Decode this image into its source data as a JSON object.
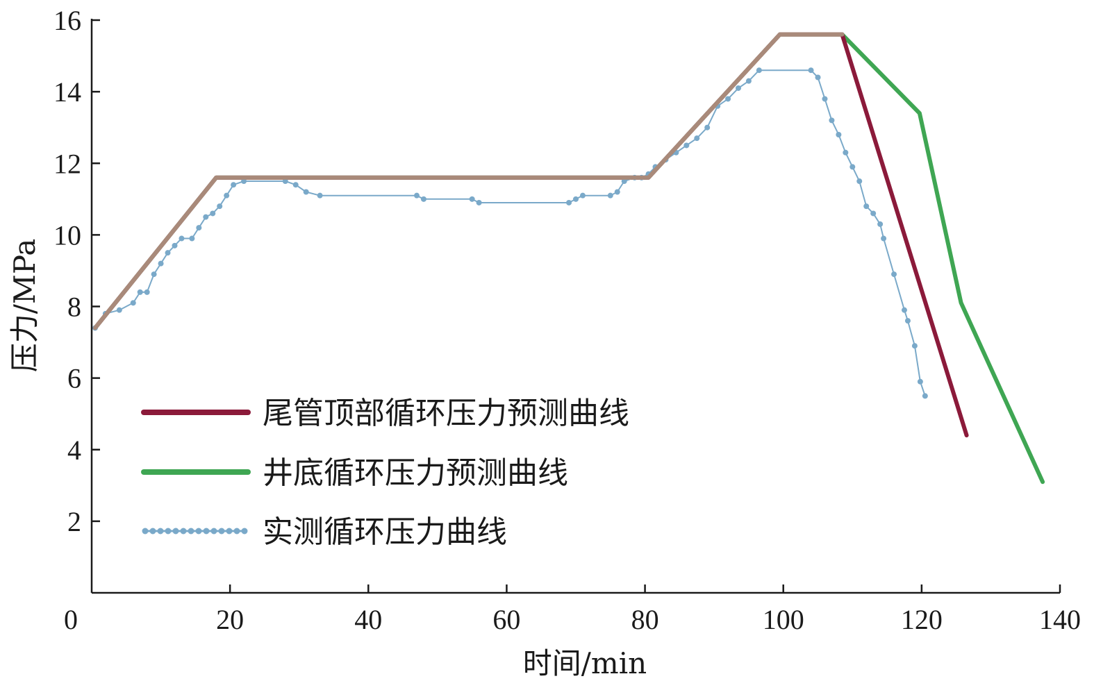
{
  "chart_data": {
    "type": "line",
    "xlabel": "时间/min",
    "ylabel": "压力/MPa",
    "xlim": [
      0,
      140
    ],
    "ylim": [
      0,
      16
    ],
    "xticks": [
      0,
      20,
      40,
      60,
      80,
      100,
      120,
      140
    ],
    "yticks": [
      2,
      4,
      6,
      8,
      10,
      12,
      14,
      16
    ],
    "grid": false,
    "legend_position": "lower-left",
    "series": [
      {
        "name": "尾管顶部循环压力预测曲线",
        "color": "#8b1a3a",
        "style": "solid",
        "points": [
          [
            0.5,
            7.4
          ],
          [
            18,
            11.6
          ],
          [
            80.5,
            11.6
          ],
          [
            99.5,
            15.6
          ],
          [
            108.5,
            15.6
          ],
          [
            126.5,
            4.4
          ]
        ]
      },
      {
        "name": "井底循环压力预测曲线",
        "color": "#3fa653",
        "style": "solid",
        "points": [
          [
            0.5,
            7.4
          ],
          [
            18,
            11.6
          ],
          [
            80.5,
            11.6
          ],
          [
            99.5,
            15.6
          ],
          [
            108.5,
            15.6
          ],
          [
            119.7,
            13.4
          ],
          [
            125.7,
            8.1
          ],
          [
            137.5,
            3.1
          ]
        ]
      },
      {
        "name": "实测循环压力曲线",
        "color": "#7aa9c9",
        "style": "dotted",
        "points": [
          [
            0.5,
            7.4
          ],
          [
            2,
            7.8
          ],
          [
            4,
            7.9
          ],
          [
            6,
            8.1
          ],
          [
            7,
            8.4
          ],
          [
            8,
            8.4
          ],
          [
            9,
            8.9
          ],
          [
            10,
            9.2
          ],
          [
            11,
            9.5
          ],
          [
            12,
            9.7
          ],
          [
            13,
            9.9
          ],
          [
            14.5,
            9.9
          ],
          [
            15.5,
            10.2
          ],
          [
            16.5,
            10.5
          ],
          [
            17.5,
            10.6
          ],
          [
            18.5,
            10.8
          ],
          [
            19.5,
            11.1
          ],
          [
            20.5,
            11.4
          ],
          [
            22,
            11.5
          ],
          [
            28,
            11.5
          ],
          [
            29.5,
            11.4
          ],
          [
            31,
            11.2
          ],
          [
            33,
            11.1
          ],
          [
            47,
            11.1
          ],
          [
            48,
            11.0
          ],
          [
            55,
            11.0
          ],
          [
            56,
            10.9
          ],
          [
            69,
            10.9
          ],
          [
            70,
            11.0
          ],
          [
            71,
            11.1
          ],
          [
            75,
            11.1
          ],
          [
            76,
            11.2
          ],
          [
            77,
            11.5
          ],
          [
            78.5,
            11.6
          ],
          [
            79.5,
            11.6
          ],
          [
            80.5,
            11.7
          ],
          [
            81.5,
            11.9
          ],
          [
            83,
            12.1
          ],
          [
            84.5,
            12.3
          ],
          [
            86,
            12.5
          ],
          [
            87.5,
            12.7
          ],
          [
            89,
            13.0
          ],
          [
            90.5,
            13.6
          ],
          [
            92,
            13.8
          ],
          [
            93.5,
            14.1
          ],
          [
            95,
            14.3
          ],
          [
            96.5,
            14.6
          ],
          [
            104,
            14.6
          ],
          [
            105,
            14.4
          ],
          [
            106,
            13.8
          ],
          [
            107,
            13.2
          ],
          [
            108,
            12.8
          ],
          [
            109,
            12.3
          ],
          [
            110,
            11.9
          ],
          [
            111,
            11.5
          ],
          [
            112,
            10.8
          ],
          [
            113,
            10.6
          ],
          [
            114,
            10.3
          ],
          [
            114.5,
            9.9
          ],
          [
            116,
            8.9
          ],
          [
            117.5,
            7.9
          ],
          [
            118,
            7.6
          ],
          [
            119,
            6.9
          ],
          [
            119.8,
            5.9
          ],
          [
            120.5,
            5.5
          ]
        ]
      }
    ]
  }
}
